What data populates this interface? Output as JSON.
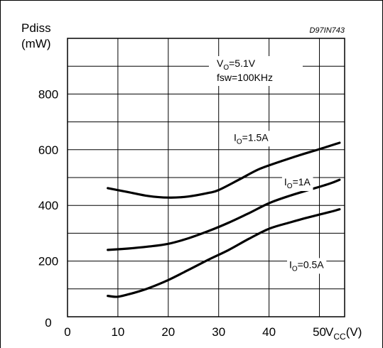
{
  "chart_data": {
    "type": "line",
    "title": "",
    "code": "D97IN743",
    "ylabel": [
      "Pdiss",
      "(mW)"
    ],
    "xlabel": {
      "main": "V",
      "sub": "CC",
      "unit": "(V)"
    },
    "xlim": [
      0,
      55
    ],
    "ylim": [
      0,
      1000
    ],
    "x_ticks": [
      0,
      10,
      20,
      30,
      40,
      50
    ],
    "y_ticks": [
      0,
      200,
      400,
      600,
      800
    ],
    "grid": true,
    "conditions": {
      "vo": {
        "main": "V",
        "sub": "O",
        "rest": "=5.1V"
      },
      "fsw": "fsw=100KHz"
    },
    "series": [
      {
        "name": {
          "main": "I",
          "sub": "O",
          "rest": "=1.5A"
        },
        "x": [
          8,
          12,
          16,
          20,
          24,
          28,
          30,
          34,
          38,
          42,
          46,
          50,
          54
        ],
        "y": [
          462,
          448,
          434,
          428,
          432,
          445,
          455,
          492,
          530,
          556,
          580,
          602,
          625
        ]
      },
      {
        "name": {
          "main": "I",
          "sub": "O",
          "rest": "=1A"
        },
        "x": [
          8,
          12,
          16,
          20,
          24,
          28,
          32,
          36,
          40,
          44,
          48,
          52,
          54
        ],
        "y": [
          240,
          245,
          252,
          262,
          282,
          308,
          338,
          372,
          408,
          434,
          456,
          478,
          492
        ]
      },
      {
        "name": {
          "main": "I",
          "sub": "O",
          "rest": "=0.5A"
        },
        "x": [
          8,
          10,
          13,
          16,
          20,
          24,
          28,
          32,
          36,
          40,
          44,
          48,
          52,
          54
        ],
        "y": [
          75,
          72,
          85,
          102,
          132,
          168,
          205,
          240,
          280,
          316,
          338,
          358,
          376,
          386
        ]
      }
    ],
    "series_labels": [
      {
        "x": 33,
        "y": 632,
        "leader_to": [
          36,
          618
        ]
      },
      {
        "x": 43,
        "y": 472,
        "leader_to": [
          48,
          468
        ]
      },
      {
        "x": 44,
        "y": 175,
        "leader_to": [
          50,
          176
        ]
      }
    ]
  }
}
